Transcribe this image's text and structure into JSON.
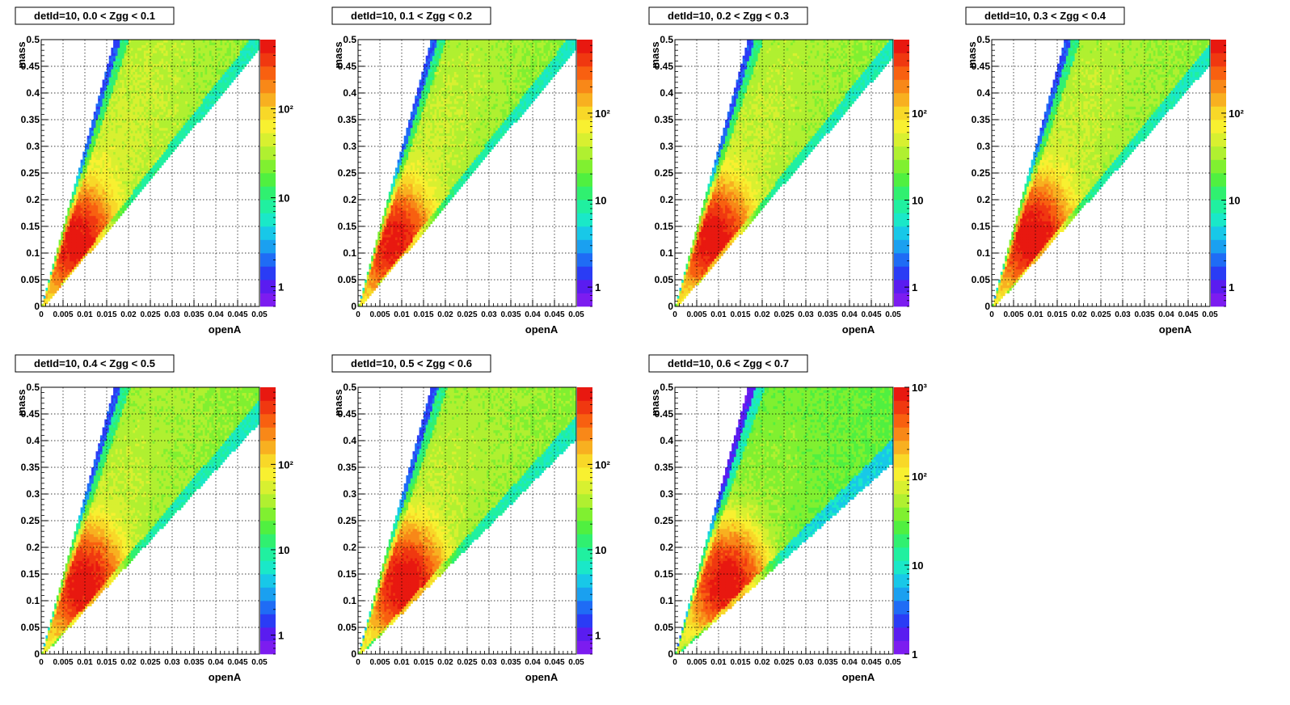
{
  "figure": {
    "x_tick_labels": [
      "0",
      "0.005",
      "0.01",
      "0.015",
      "0.02",
      "0.025",
      "0.03",
      "0.035",
      "0.04",
      "0.045",
      "0.05"
    ],
    "y_tick_labels": [
      "0",
      "0.05",
      "0.1",
      "0.15",
      "0.2",
      "0.25",
      "0.3",
      "0.35",
      "0.4",
      "0.45",
      "0.5"
    ],
    "xlabel": "openA",
    "ylabel": "mass",
    "colors": {
      "palette": [
        "#7c1cf0",
        "#5a1cf0",
        "#2a3cf5",
        "#1f6cf5",
        "#1aa0f0",
        "#18c8e8",
        "#1ae8c8",
        "#20f0a0",
        "#30f070",
        "#50f040",
        "#80f030",
        "#b0f030",
        "#d8f030",
        "#f8f030",
        "#f8d828",
        "#f8b020",
        "#f88818",
        "#f86010",
        "#f03810",
        "#e81810"
      ],
      "grid": "#000000",
      "frame": "#000000"
    }
  },
  "chart_data": [
    {
      "type": "heatmap",
      "title": "detId=10, 0.0 < Zgg < 0.1",
      "xlabel": "openA",
      "ylabel": "mass",
      "xlim": [
        0,
        0.05
      ],
      "ylim": [
        0,
        0.5
      ],
      "z_scale": "log",
      "colorbar": {
        "min": 0.6,
        "max": 600,
        "tick_labels": [
          {
            "value": 1,
            "label": "1"
          },
          {
            "value": 10,
            "label": "10"
          },
          {
            "value": 100,
            "label": "10²"
          }
        ]
      },
      "peak": {
        "openA": 0.0085,
        "mass": 0.12,
        "max_count": 500
      },
      "band": {
        "low_slope": 9.8,
        "high_slope": 30,
        "start": 0.0008
      }
    },
    {
      "type": "heatmap",
      "title": "detId=10, 0.1 < Zgg < 0.2",
      "xlabel": "openA",
      "ylabel": "mass",
      "xlim": [
        0,
        0.05
      ],
      "ylim": [
        0,
        0.5
      ],
      "z_scale": "log",
      "colorbar": {
        "min": 0.6,
        "max": 700,
        "tick_labels": [
          {
            "value": 1,
            "label": "1"
          },
          {
            "value": 10,
            "label": "10"
          },
          {
            "value": 100,
            "label": "10²"
          }
        ]
      },
      "peak": {
        "openA": 0.0085,
        "mass": 0.12,
        "max_count": 550
      },
      "band": {
        "low_slope": 9.8,
        "high_slope": 30,
        "start": 0.0008
      }
    },
    {
      "type": "heatmap",
      "title": "detId=10, 0.2 < Zgg < 0.3",
      "xlabel": "openA",
      "ylabel": "mass",
      "xlim": [
        0,
        0.05
      ],
      "ylim": [
        0,
        0.5
      ],
      "z_scale": "log",
      "colorbar": {
        "min": 0.6,
        "max": 700,
        "tick_labels": [
          {
            "value": 1,
            "label": "1"
          },
          {
            "value": 10,
            "label": "10"
          },
          {
            "value": 100,
            "label": "10²"
          }
        ]
      },
      "peak": {
        "openA": 0.009,
        "mass": 0.125,
        "max_count": 600
      },
      "band": {
        "low_slope": 9.5,
        "high_slope": 30,
        "start": 0.0008
      }
    },
    {
      "type": "heatmap",
      "title": "detId=10, 0.3 < Zgg < 0.4",
      "xlabel": "openA",
      "ylabel": "mass",
      "xlim": [
        0,
        0.05
      ],
      "ylim": [
        0,
        0.5
      ],
      "z_scale": "log",
      "colorbar": {
        "min": 0.6,
        "max": 700,
        "tick_labels": [
          {
            "value": 1,
            "label": "1"
          },
          {
            "value": 10,
            "label": "10"
          },
          {
            "value": 100,
            "label": "10²"
          }
        ]
      },
      "peak": {
        "openA": 0.0095,
        "mass": 0.13,
        "max_count": 650
      },
      "band": {
        "low_slope": 9.2,
        "high_slope": 30,
        "start": 0.0008
      }
    },
    {
      "type": "heatmap",
      "title": "detId=10, 0.4 < Zgg < 0.5",
      "xlabel": "openA",
      "ylabel": "mass",
      "xlim": [
        0,
        0.05
      ],
      "ylim": [
        0,
        0.5
      ],
      "z_scale": "log",
      "colorbar": {
        "min": 0.6,
        "max": 800,
        "tick_labels": [
          {
            "value": 1,
            "label": "1"
          },
          {
            "value": 10,
            "label": "10"
          },
          {
            "value": 100,
            "label": "10²"
          }
        ]
      },
      "peak": {
        "openA": 0.01,
        "mass": 0.13,
        "max_count": 700
      },
      "band": {
        "low_slope": 8.8,
        "high_slope": 30,
        "start": 0.0008
      }
    },
    {
      "type": "heatmap",
      "title": "detId=10, 0.5 < Zgg < 0.6",
      "xlabel": "openA",
      "ylabel": "mass",
      "xlim": [
        0,
        0.05
      ],
      "ylim": [
        0,
        0.5
      ],
      "z_scale": "log",
      "colorbar": {
        "min": 0.6,
        "max": 800,
        "tick_labels": [
          {
            "value": 1,
            "label": "1"
          },
          {
            "value": 10,
            "label": "10"
          },
          {
            "value": 100,
            "label": "10²"
          }
        ]
      },
      "peak": {
        "openA": 0.011,
        "mass": 0.13,
        "max_count": 750
      },
      "band": {
        "low_slope": 8.2,
        "high_slope": 30,
        "start": 0.0008
      }
    },
    {
      "type": "heatmap",
      "title": "detId=10, 0.6 < Zgg < 0.7",
      "xlabel": "openA",
      "ylabel": "mass",
      "xlim": [
        0,
        0.05
      ],
      "ylim": [
        0,
        0.5
      ],
      "z_scale": "log",
      "colorbar": {
        "min": 1,
        "max": 1000,
        "tick_labels": [
          {
            "value": 1,
            "label": "1"
          },
          {
            "value": 10,
            "label": "10"
          },
          {
            "value": 100,
            "label": "10²"
          },
          {
            "value": 1000,
            "label": "10³"
          }
        ]
      },
      "peak": {
        "openA": 0.012,
        "mass": 0.13,
        "max_count": 900
      },
      "band": {
        "low_slope": 7.3,
        "high_slope": 30,
        "start": 0.0008
      }
    }
  ]
}
